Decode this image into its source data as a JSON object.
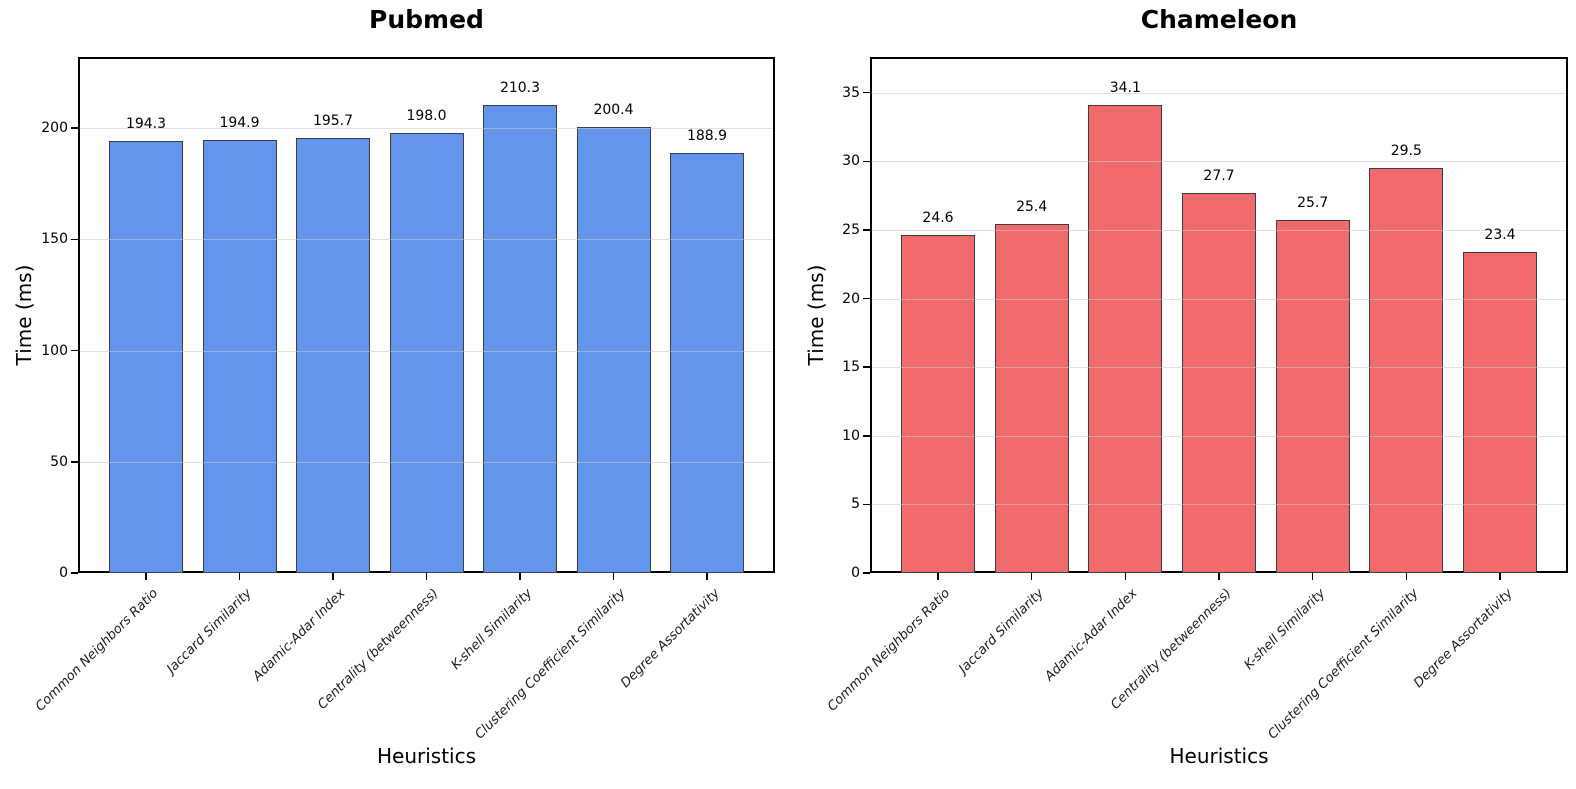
{
  "figure": {
    "background": "#ffffff",
    "grid_color": "#c8c8c8",
    "spine_color": "#000000"
  },
  "chart_data": [
    {
      "type": "bar",
      "title": "Pubmed",
      "xlabel": "Heuristics",
      "ylabel": "Time (ms)",
      "categories": [
        "Common Neighbors Ratio",
        "Jaccard Similarity",
        "Adamic-Adar Index",
        "Centrality (betweenness)",
        "K-shell Similarity",
        "Clustering Coefficient Similarity",
        "Degree Assortativity"
      ],
      "values": [
        194.3,
        194.9,
        195.7,
        198.0,
        210.3,
        200.4,
        188.9
      ],
      "value_labels": [
        "194.3",
        "194.9",
        "195.7",
        "198.0",
        "210.3",
        "200.4",
        "188.9"
      ],
      "bar_color": "#6495ED",
      "bar_edge_color": "#3a3d42",
      "yticks": [
        0,
        50,
        100,
        150,
        200
      ],
      "ylim": [
        0,
        232
      ],
      "grid": true,
      "legend_position": "none"
    },
    {
      "type": "bar",
      "title": "Chameleon",
      "xlabel": "Heuristics",
      "ylabel": "Time (ms)",
      "categories": [
        "Common Neighbors Ratio",
        "Jaccard Similarity",
        "Adamic-Adar Index",
        "Centrality (betweenness)",
        "K-shell Similarity",
        "Clustering Coefficient Similarity",
        "Degree Assortativity"
      ],
      "values": [
        24.6,
        25.4,
        34.1,
        27.7,
        25.7,
        29.5,
        23.4
      ],
      "value_labels": [
        "24.6",
        "25.4",
        "34.1",
        "27.7",
        "25.7",
        "29.5",
        "23.4"
      ],
      "bar_color": "#F16B6D",
      "bar_edge_color": "#3a3d42",
      "yticks": [
        0,
        5,
        10,
        15,
        20,
        25,
        30,
        35
      ],
      "ylim": [
        0,
        37.6
      ],
      "grid": true,
      "legend_position": "none"
    }
  ]
}
